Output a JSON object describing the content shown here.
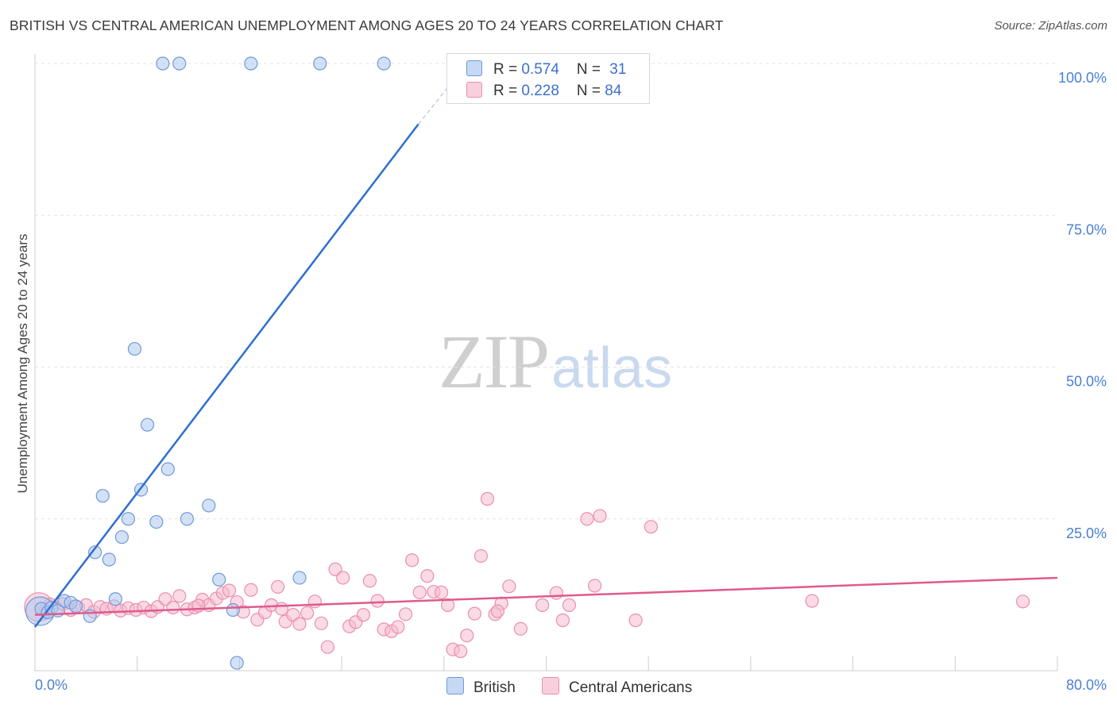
{
  "title": "BRITISH VS CENTRAL AMERICAN UNEMPLOYMENT AMONG AGES 20 TO 24 YEARS CORRELATION CHART",
  "source": "Source: ZipAtlas.com",
  "watermark": {
    "zip": "ZIP",
    "atlas": "atlas"
  },
  "colors": {
    "british_fill": "#aec8ef",
    "british_stroke": "#6f9ad8",
    "british_line": "#2e6fd0",
    "central_fill": "#f6bcd0",
    "central_stroke": "#e98fae",
    "central_line": "#e05a8c",
    "axis_text": "#4a7fd4",
    "grid": "#e3e3e3"
  },
  "legend": {
    "british": {
      "r_label": "R = ",
      "r_value": "0.574",
      "n_label": "N = ",
      "n_value": "31"
    },
    "central": {
      "r_label": "R = ",
      "r_value": "0.228",
      "n_label": "N = ",
      "n_value": "84"
    }
  },
  "bottom_legend": {
    "british": "British",
    "central": "Central Americans"
  },
  "chart_data": {
    "type": "scatter",
    "title": "BRITISH VS CENTRAL AMERICAN UNEMPLOYMENT AMONG AGES 20 TO 24 YEARS CORRELATION CHART",
    "xlabel": "",
    "ylabel": "Unemployment Among Ages 20 to 24 years",
    "xlim": [
      0,
      80
    ],
    "ylim": [
      0,
      100
    ],
    "x_tick_labels": [
      "0.0%",
      "80.0%"
    ],
    "y_ticks": [
      25,
      50,
      75,
      100
    ],
    "y_tick_labels": [
      "25.0%",
      "50.0%",
      "75.0%",
      "100.0%"
    ],
    "grid": true,
    "legend_position": "top-center",
    "series": [
      {
        "name": "British",
        "R": 0.574,
        "N": 31,
        "trend": {
          "x": [
            0,
            30
          ],
          "y": [
            7.2,
            90
          ],
          "dashed_to": [
            33.8,
            100
          ]
        },
        "points": [
          {
            "x": 0.4,
            "y": 9.8,
            "big": true
          },
          {
            "x": 0.5,
            "y": 10.2
          },
          {
            "x": 1.0,
            "y": 9.6
          },
          {
            "x": 1.3,
            "y": 10.4
          },
          {
            "x": 1.8,
            "y": 9.9
          },
          {
            "x": 2.3,
            "y": 11.5
          },
          {
            "x": 2.8,
            "y": 11.2
          },
          {
            "x": 3.2,
            "y": 10.6
          },
          {
            "x": 4.3,
            "y": 9.0
          },
          {
            "x": 4.7,
            "y": 19.5
          },
          {
            "x": 5.3,
            "y": 28.8
          },
          {
            "x": 5.8,
            "y": 18.3
          },
          {
            "x": 6.3,
            "y": 11.8
          },
          {
            "x": 6.8,
            "y": 22.0
          },
          {
            "x": 7.3,
            "y": 25.0
          },
          {
            "x": 7.8,
            "y": 53.0
          },
          {
            "x": 8.3,
            "y": 29.8
          },
          {
            "x": 8.8,
            "y": 40.5
          },
          {
            "x": 9.5,
            "y": 24.5
          },
          {
            "x": 10.4,
            "y": 33.2
          },
          {
            "x": 11.9,
            "y": 25.0
          },
          {
            "x": 13.6,
            "y": 27.2
          },
          {
            "x": 14.4,
            "y": 15.0
          },
          {
            "x": 15.5,
            "y": 10.0
          },
          {
            "x": 15.8,
            "y": 1.3
          },
          {
            "x": 20.7,
            "y": 15.3
          },
          {
            "x": 10.0,
            "y": 100.0
          },
          {
            "x": 11.3,
            "y": 100.0
          },
          {
            "x": 16.9,
            "y": 100.0
          },
          {
            "x": 22.3,
            "y": 100.0
          },
          {
            "x": 27.3,
            "y": 100.0
          }
        ]
      },
      {
        "name": "Central Americans",
        "R": 0.228,
        "N": 84,
        "trend": {
          "x": [
            0,
            80
          ],
          "y": [
            9.2,
            15.3
          ]
        },
        "points": [
          {
            "x": 0.3,
            "y": 10.5,
            "big": true
          },
          {
            "x": 0.8,
            "y": 9.8
          },
          {
            "x": 1.2,
            "y": 10.9
          },
          {
            "x": 1.7,
            "y": 10.3
          },
          {
            "x": 2.2,
            "y": 11.0
          },
          {
            "x": 2.8,
            "y": 10.0
          },
          {
            "x": 3.4,
            "y": 10.4
          },
          {
            "x": 4.0,
            "y": 10.8
          },
          {
            "x": 4.6,
            "y": 9.7
          },
          {
            "x": 5.1,
            "y": 10.5
          },
          {
            "x": 5.6,
            "y": 10.2
          },
          {
            "x": 6.2,
            "y": 10.6
          },
          {
            "x": 6.7,
            "y": 9.9
          },
          {
            "x": 7.3,
            "y": 10.3
          },
          {
            "x": 7.9,
            "y": 10.0
          },
          {
            "x": 8.5,
            "y": 10.4
          },
          {
            "x": 9.1,
            "y": 9.8
          },
          {
            "x": 9.6,
            "y": 10.5
          },
          {
            "x": 10.2,
            "y": 11.8
          },
          {
            "x": 10.8,
            "y": 10.4
          },
          {
            "x": 11.3,
            "y": 12.3
          },
          {
            "x": 11.9,
            "y": 10.1
          },
          {
            "x": 12.5,
            "y": 10.4
          },
          {
            "x": 13.1,
            "y": 11.7
          },
          {
            "x": 13.6,
            "y": 10.8
          },
          {
            "x": 14.2,
            "y": 11.9
          },
          {
            "x": 14.7,
            "y": 12.8
          },
          {
            "x": 15.2,
            "y": 13.2
          },
          {
            "x": 15.8,
            "y": 11.3
          },
          {
            "x": 16.3,
            "y": 9.7
          },
          {
            "x": 16.9,
            "y": 13.3
          },
          {
            "x": 17.4,
            "y": 8.4
          },
          {
            "x": 18.0,
            "y": 9.6
          },
          {
            "x": 18.5,
            "y": 10.8
          },
          {
            "x": 19.0,
            "y": 13.8
          },
          {
            "x": 19.6,
            "y": 8.1
          },
          {
            "x": 20.2,
            "y": 9.2
          },
          {
            "x": 20.7,
            "y": 7.7
          },
          {
            "x": 21.3,
            "y": 9.5
          },
          {
            "x": 21.9,
            "y": 11.4
          },
          {
            "x": 22.4,
            "y": 7.8
          },
          {
            "x": 22.9,
            "y": 3.9
          },
          {
            "x": 23.5,
            "y": 16.7
          },
          {
            "x": 24.1,
            "y": 15.3
          },
          {
            "x": 24.6,
            "y": 7.3
          },
          {
            "x": 25.1,
            "y": 8.0
          },
          {
            "x": 25.7,
            "y": 9.2
          },
          {
            "x": 26.2,
            "y": 14.8
          },
          {
            "x": 26.8,
            "y": 11.5
          },
          {
            "x": 27.3,
            "y": 6.8
          },
          {
            "x": 27.9,
            "y": 6.5
          },
          {
            "x": 28.4,
            "y": 7.2
          },
          {
            "x": 29.0,
            "y": 9.3
          },
          {
            "x": 29.5,
            "y": 18.2
          },
          {
            "x": 30.1,
            "y": 12.9
          },
          {
            "x": 30.7,
            "y": 15.6
          },
          {
            "x": 31.2,
            "y": 13.0
          },
          {
            "x": 31.8,
            "y": 12.9
          },
          {
            "x": 32.3,
            "y": 10.8
          },
          {
            "x": 32.7,
            "y": 3.5
          },
          {
            "x": 33.3,
            "y": 3.2
          },
          {
            "x": 33.8,
            "y": 5.8
          },
          {
            "x": 34.4,
            "y": 9.4
          },
          {
            "x": 34.9,
            "y": 18.9
          },
          {
            "x": 35.4,
            "y": 28.3
          },
          {
            "x": 36.0,
            "y": 9.3
          },
          {
            "x": 36.5,
            "y": 11.1
          },
          {
            "x": 37.1,
            "y": 13.9
          },
          {
            "x": 38.0,
            "y": 6.9
          },
          {
            "x": 39.7,
            "y": 10.8
          },
          {
            "x": 40.8,
            "y": 12.8
          },
          {
            "x": 41.3,
            "y": 8.3
          },
          {
            "x": 41.8,
            "y": 10.8
          },
          {
            "x": 43.2,
            "y": 25.0
          },
          {
            "x": 43.8,
            "y": 14.0
          },
          {
            "x": 44.2,
            "y": 25.5
          },
          {
            "x": 47.0,
            "y": 8.3
          },
          {
            "x": 48.2,
            "y": 23.7
          },
          {
            "x": 60.8,
            "y": 11.5
          },
          {
            "x": 77.3,
            "y": 11.4
          },
          {
            "x": 36.2,
            "y": 9.8
          },
          {
            "x": 19.3,
            "y": 10.2
          },
          {
            "x": 12.8,
            "y": 10.7
          }
        ]
      }
    ]
  }
}
